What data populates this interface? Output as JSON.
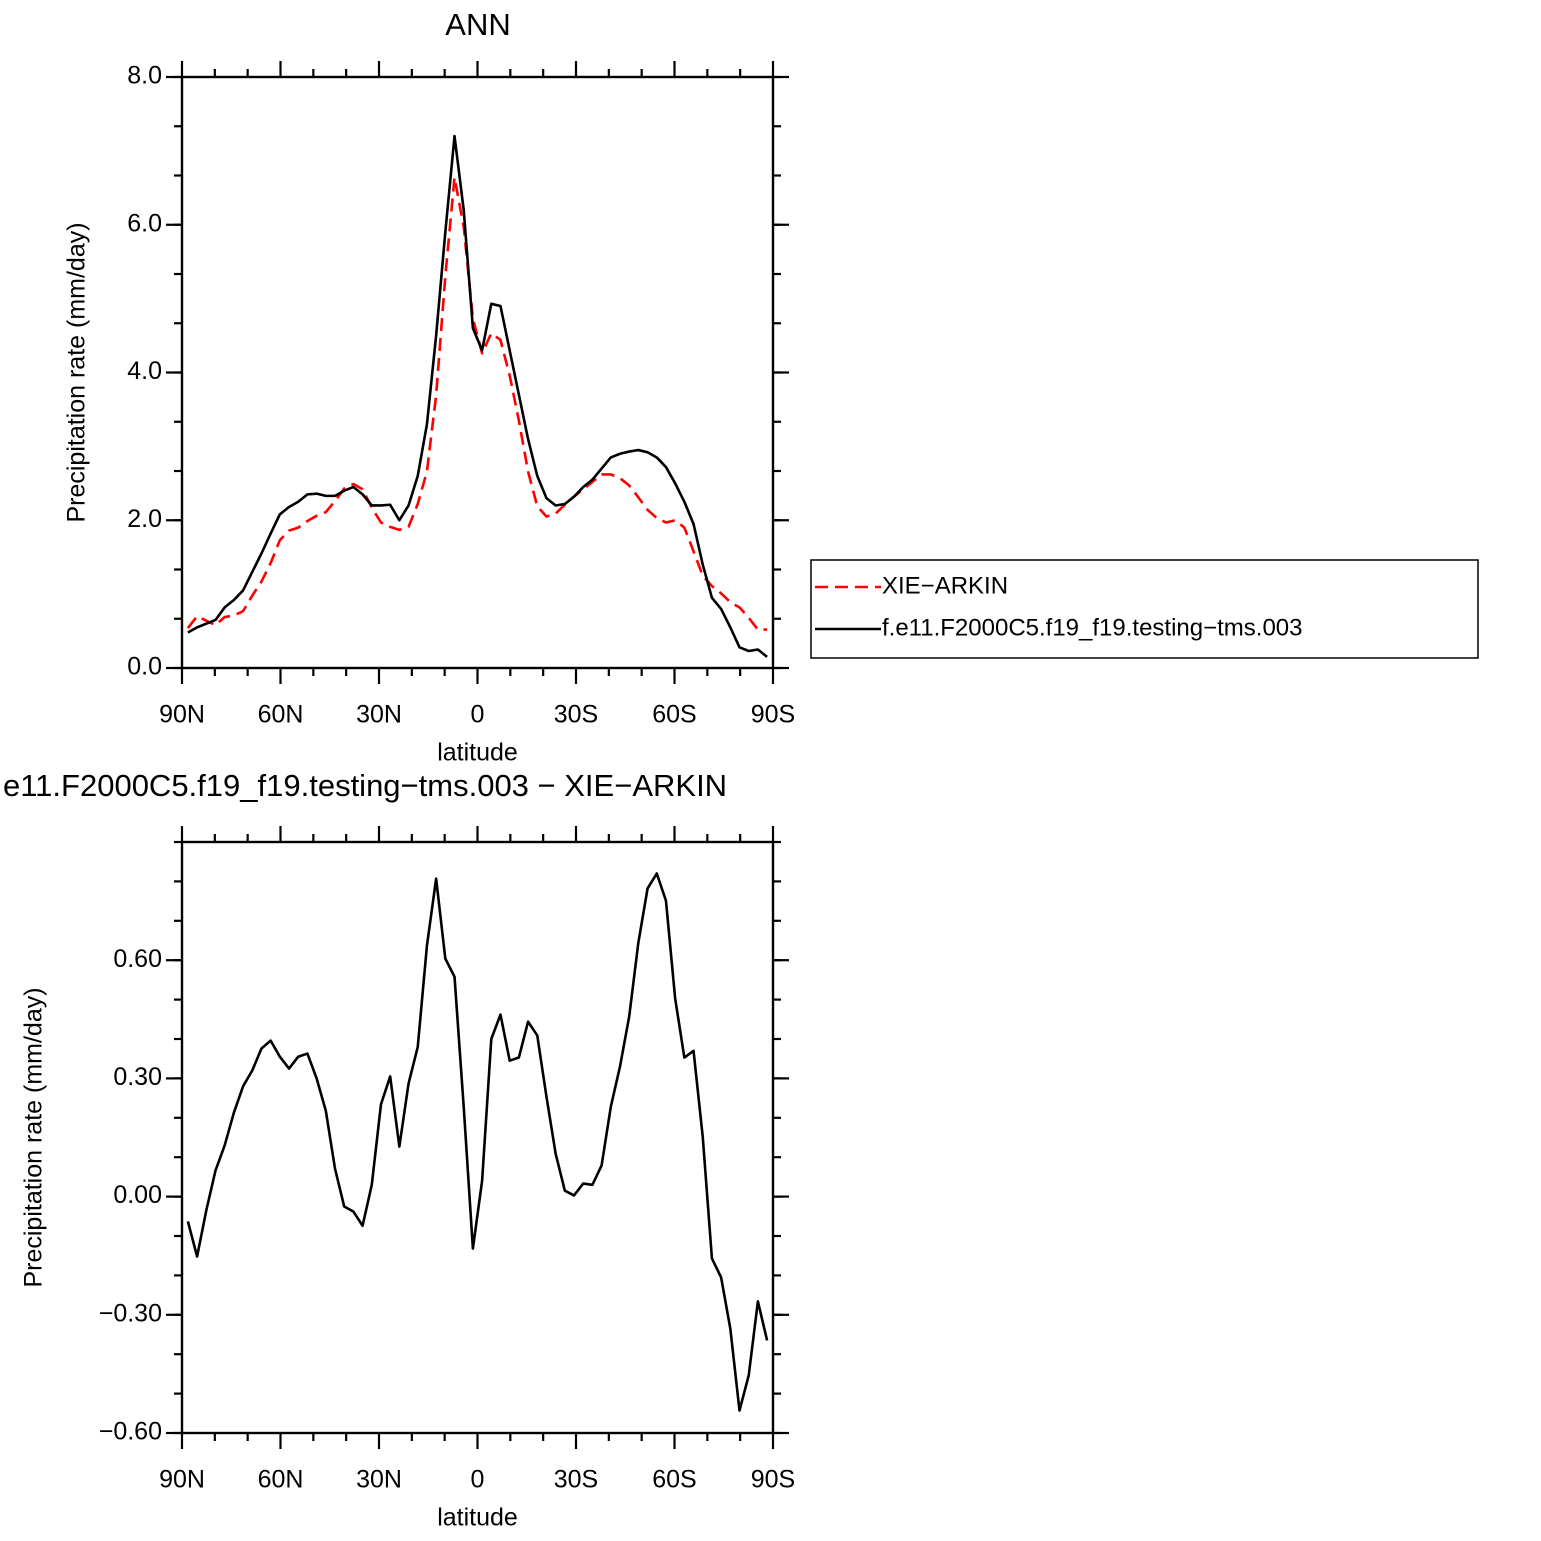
{
  "chart_data": [
    {
      "type": "line",
      "title": "ANN",
      "xlabel": "latitude",
      "ylabel": "Precipitation rate (mm/day)",
      "x": [
        88.2,
        85.4,
        82.6,
        79.8,
        77.0,
        74.2,
        71.4,
        68.6,
        65.8,
        63.0,
        60.2,
        57.4,
        54.6,
        51.8,
        49.0,
        46.2,
        43.4,
        40.6,
        37.8,
        35.0,
        32.2,
        29.4,
        26.6,
        23.8,
        21.0,
        18.2,
        15.4,
        12.6,
        9.8,
        7.0,
        4.2,
        1.4,
        -1.4,
        -4.2,
        -7.0,
        -9.8,
        -12.6,
        -15.4,
        -18.2,
        -21.0,
        -23.8,
        -26.6,
        -29.4,
        -32.2,
        -35.0,
        -37.8,
        -40.6,
        -43.4,
        -46.2,
        -49.0,
        -51.8,
        -54.6,
        -57.4,
        -60.2,
        -63.0,
        -65.8,
        -68.6,
        -71.4,
        -74.2,
        -77.0,
        -79.8,
        -82.6,
        -85.4,
        -88.2
      ],
      "series": [
        {
          "name": "XIE−ARKIN",
          "color": "#ff0000",
          "dashed": true,
          "values": [
            0.54,
            0.7,
            0.64,
            0.58,
            0.69,
            0.71,
            0.77,
            0.98,
            1.17,
            1.42,
            1.73,
            1.86,
            1.9,
            1.99,
            2.06,
            2.11,
            2.26,
            2.43,
            2.49,
            2.42,
            2.17,
            1.97,
            1.91,
            1.87,
            1.91,
            2.22,
            2.66,
            3.69,
            5.3,
            6.64,
            5.97,
            4.73,
            4.26,
            4.53,
            4.44,
            3.96,
            3.35,
            2.66,
            2.19,
            2.05,
            2.09,
            2.21,
            2.32,
            2.42,
            2.52,
            2.62,
            2.62,
            2.57,
            2.47,
            2.31,
            2.14,
            2.03,
            1.97,
            2.0,
            1.9,
            1.58,
            1.25,
            1.11,
            1.01,
            0.89,
            0.82,
            0.68,
            0.52,
            0.52
          ]
        },
        {
          "name": "f.e11.F2000C5.f19_f19.testing−tms.003",
          "color": "#000000",
          "dashed": false,
          "values": [
            0.48,
            0.55,
            0.6,
            0.65,
            0.82,
            0.92,
            1.05,
            1.3,
            1.55,
            1.82,
            2.08,
            2.18,
            2.25,
            2.35,
            2.36,
            2.33,
            2.33,
            2.4,
            2.45,
            2.35,
            2.2,
            2.2,
            2.21,
            2.0,
            2.2,
            2.6,
            3.3,
            4.5,
            5.9,
            7.2,
            6.2,
            4.6,
            4.3,
            4.93,
            4.9,
            4.3,
            3.7,
            3.1,
            2.6,
            2.3,
            2.2,
            2.22,
            2.32,
            2.45,
            2.55,
            2.7,
            2.85,
            2.9,
            2.93,
            2.95,
            2.92,
            2.85,
            2.72,
            2.5,
            2.25,
            1.95,
            1.4,
            0.95,
            0.8,
            0.55,
            0.28,
            0.23,
            0.25,
            0.15
          ]
        }
      ],
      "xlim": [
        90,
        -90
      ],
      "xticks": [
        {
          "value": 90,
          "label": "90N"
        },
        {
          "value": 60,
          "label": "60N"
        },
        {
          "value": 30,
          "label": "30N"
        },
        0,
        {
          "value": -30,
          "label": "30S"
        },
        {
          "value": -60,
          "label": "60S"
        },
        {
          "value": -90,
          "label": "90S"
        }
      ],
      "ylim": [
        0,
        8
      ],
      "yticks": [
        {
          "value": 0,
          "label": "0.0"
        },
        {
          "value": 2,
          "label": "2.0"
        },
        {
          "value": 4,
          "label": "4.0"
        },
        {
          "value": 6,
          "label": "6.0"
        },
        {
          "value": 8,
          "label": "8.0"
        }
      ],
      "legend": "right"
    },
    {
      "type": "line",
      "title": "e11.F2000C5.f19_f19.testing−tms.003 − XIE−ARKIN",
      "xlabel": "latitude",
      "ylabel": "Precipitation rate (mm/day)",
      "x": [
        88.2,
        85.4,
        82.6,
        79.8,
        77.0,
        74.2,
        71.4,
        68.6,
        65.8,
        63.0,
        60.2,
        57.4,
        54.6,
        51.8,
        49.0,
        46.2,
        43.4,
        40.6,
        37.8,
        35.0,
        32.2,
        29.4,
        26.6,
        23.8,
        21.0,
        18.2,
        15.4,
        12.6,
        9.8,
        7.0,
        4.2,
        1.4,
        -1.4,
        -4.2,
        -7.0,
        -9.8,
        -12.6,
        -15.4,
        -18.2,
        -21.0,
        -23.8,
        -26.6,
        -29.4,
        -32.2,
        -35.0,
        -37.8,
        -40.6,
        -43.4,
        -46.2,
        -49.0,
        -51.8,
        -54.6,
        -57.4,
        -60.2,
        -63.0,
        -65.8,
        -68.6,
        -71.4,
        -74.2,
        -77.0,
        -79.8,
        -82.6,
        -85.4,
        -88.2
      ],
      "series": [
        {
          "color": "#000000",
          "dashed": false,
          "values": [
            -0.063,
            -0.152,
            -0.035,
            0.066,
            0.13,
            0.213,
            0.28,
            0.32,
            0.376,
            0.396,
            0.355,
            0.325,
            0.355,
            0.363,
            0.3,
            0.218,
            0.071,
            -0.025,
            -0.038,
            -0.074,
            0.03,
            0.234,
            0.305,
            0.127,
            0.287,
            0.38,
            0.637,
            0.807,
            0.604,
            0.558,
            0.228,
            -0.132,
            0.04,
            0.4,
            0.462,
            0.345,
            0.353,
            0.444,
            0.409,
            0.254,
            0.109,
            0.015,
            0.003,
            0.033,
            0.03,
            0.079,
            0.228,
            0.33,
            0.457,
            0.645,
            0.782,
            0.82,
            0.751,
            0.503,
            0.353,
            0.37,
            0.152,
            -0.157,
            -0.205,
            -0.335,
            -0.543,
            -0.454,
            -0.266,
            -0.365
          ]
        }
      ],
      "xlim": [
        90,
        -90
      ],
      "xticks": [
        {
          "value": 90,
          "label": "90N"
        },
        {
          "value": 60,
          "label": "60N"
        },
        {
          "value": 30,
          "label": "30N"
        },
        0,
        {
          "value": -30,
          "label": "30S"
        },
        {
          "value": -60,
          "label": "60S"
        },
        {
          "value": -90,
          "label": "90S"
        }
      ],
      "ylim": [
        -0.6,
        0.9
      ],
      "yticks": [
        {
          "value": -0.6,
          "label": "−0.60"
        },
        {
          "value": -0.3,
          "label": "−0.30"
        },
        {
          "value": 0,
          "label": "0.00"
        },
        {
          "value": 0.3,
          "label": "0.30"
        },
        {
          "value": 0.6,
          "label": "0.60"
        }
      ]
    }
  ]
}
